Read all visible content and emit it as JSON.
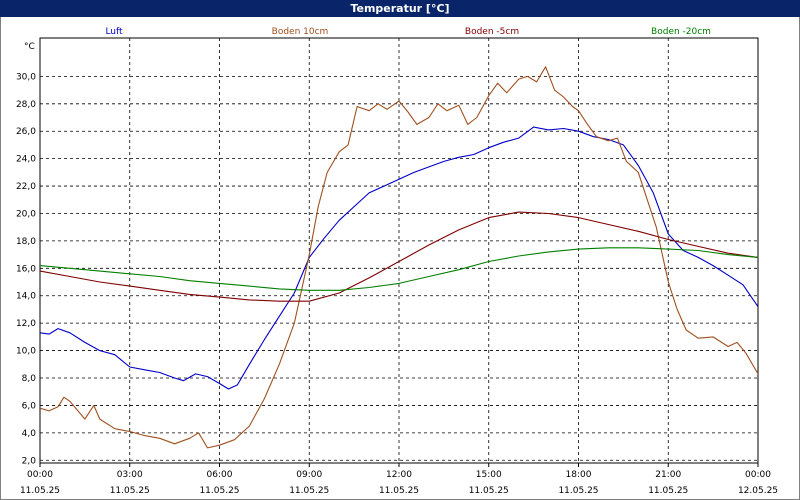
{
  "window": {
    "title": "Temperatur [°C]"
  },
  "chart_data": {
    "type": "line",
    "title": "Temperatur [°C]",
    "ylabel": "°C",
    "ylim": [
      1.8,
      32.8
    ],
    "xlim": [
      0,
      24
    ],
    "grid": true,
    "y_ticks": [
      "2,0",
      "4,0",
      "6,0",
      "8,0",
      "10,0",
      "12,0",
      "14,0",
      "16,0",
      "18,0",
      "20,0",
      "22,0",
      "24,0",
      "26,0",
      "28,0",
      "30,0"
    ],
    "x_ticks": [
      {
        "h": 0,
        "time": "00:00",
        "date": "11.05.25"
      },
      {
        "h": 3,
        "time": "03:00",
        "date": "11.05.25"
      },
      {
        "h": 6,
        "time": "06:00",
        "date": "11.05.25"
      },
      {
        "h": 9,
        "time": "09:00",
        "date": "11.05.25"
      },
      {
        "h": 12,
        "time": "12:00",
        "date": "11.05.25"
      },
      {
        "h": 15,
        "time": "15:00",
        "date": "11.05.25"
      },
      {
        "h": 18,
        "time": "18:00",
        "date": "11.05.25"
      },
      {
        "h": 21,
        "time": "21:00",
        "date": "11.05.25"
      },
      {
        "h": 24,
        "time": "00:00",
        "date": "12.05.25"
      }
    ],
    "series": [
      {
        "name": "Luft",
        "color": "#0000c8",
        "points": [
          [
            0,
            11.3
          ],
          [
            0.3,
            11.2
          ],
          [
            0.6,
            11.6
          ],
          [
            1.0,
            11.3
          ],
          [
            1.5,
            10.6
          ],
          [
            2.0,
            10.0
          ],
          [
            2.5,
            9.7
          ],
          [
            3.0,
            8.8
          ],
          [
            3.5,
            8.6
          ],
          [
            4.0,
            8.4
          ],
          [
            4.5,
            8.0
          ],
          [
            4.8,
            7.8
          ],
          [
            5.2,
            8.3
          ],
          [
            5.6,
            8.1
          ],
          [
            6.0,
            7.6
          ],
          [
            6.3,
            7.2
          ],
          [
            6.6,
            7.5
          ],
          [
            7.0,
            9.0
          ],
          [
            7.5,
            10.8
          ],
          [
            8.0,
            12.5
          ],
          [
            8.5,
            14.2
          ],
          [
            9.0,
            16.8
          ],
          [
            9.5,
            18.2
          ],
          [
            10.0,
            19.5
          ],
          [
            10.5,
            20.5
          ],
          [
            11.0,
            21.5
          ],
          [
            11.5,
            22.0
          ],
          [
            12.0,
            22.5
          ],
          [
            12.5,
            23.0
          ],
          [
            13.0,
            23.4
          ],
          [
            13.5,
            23.8
          ],
          [
            14.0,
            24.1
          ],
          [
            14.5,
            24.3
          ],
          [
            15.0,
            24.8
          ],
          [
            15.5,
            25.2
          ],
          [
            16.0,
            25.5
          ],
          [
            16.5,
            26.3
          ],
          [
            17.0,
            26.1
          ],
          [
            17.5,
            26.2
          ],
          [
            18.0,
            26.0
          ],
          [
            18.5,
            25.6
          ],
          [
            19.0,
            25.4
          ],
          [
            19.5,
            25.0
          ],
          [
            20.0,
            23.5
          ],
          [
            20.5,
            21.5
          ],
          [
            21.0,
            18.5
          ],
          [
            21.5,
            17.3
          ],
          [
            22.0,
            16.8
          ],
          [
            22.5,
            16.2
          ],
          [
            23.0,
            15.5
          ],
          [
            23.5,
            14.8
          ],
          [
            24.0,
            13.2
          ]
        ]
      },
      {
        "name": "Boden 10cm",
        "color": "#a0501e",
        "points": [
          [
            0,
            5.8
          ],
          [
            0.3,
            5.6
          ],
          [
            0.6,
            5.9
          ],
          [
            0.8,
            6.6
          ],
          [
            1.0,
            6.3
          ],
          [
            1.5,
            5.0
          ],
          [
            1.8,
            6.0
          ],
          [
            2.0,
            5.0
          ],
          [
            2.5,
            4.3
          ],
          [
            3.0,
            4.1
          ],
          [
            3.5,
            3.8
          ],
          [
            4.0,
            3.6
          ],
          [
            4.5,
            3.2
          ],
          [
            5.0,
            3.6
          ],
          [
            5.3,
            4.0
          ],
          [
            5.6,
            2.9
          ],
          [
            6.0,
            3.1
          ],
          [
            6.5,
            3.5
          ],
          [
            7.0,
            4.5
          ],
          [
            7.5,
            6.5
          ],
          [
            8.0,
            9.0
          ],
          [
            8.5,
            12.0
          ],
          [
            9.0,
            17.0
          ],
          [
            9.3,
            20.5
          ],
          [
            9.6,
            23.0
          ],
          [
            10.0,
            24.5
          ],
          [
            10.3,
            25.0
          ],
          [
            10.6,
            27.8
          ],
          [
            11.0,
            27.5
          ],
          [
            11.3,
            28.0
          ],
          [
            11.6,
            27.6
          ],
          [
            12.0,
            28.2
          ],
          [
            12.3,
            27.4
          ],
          [
            12.6,
            26.5
          ],
          [
            13.0,
            27.0
          ],
          [
            13.3,
            28.0
          ],
          [
            13.6,
            27.5
          ],
          [
            14.0,
            27.9
          ],
          [
            14.3,
            26.5
          ],
          [
            14.6,
            27.0
          ],
          [
            15.0,
            28.6
          ],
          [
            15.3,
            29.5
          ],
          [
            15.6,
            28.8
          ],
          [
            16.0,
            29.8
          ],
          [
            16.3,
            30.0
          ],
          [
            16.6,
            29.6
          ],
          [
            16.9,
            30.7
          ],
          [
            17.2,
            29.0
          ],
          [
            17.5,
            28.5
          ],
          [
            17.8,
            27.8
          ],
          [
            18.0,
            27.5
          ],
          [
            18.3,
            26.5
          ],
          [
            18.6,
            25.6
          ],
          [
            19.0,
            25.3
          ],
          [
            19.3,
            25.5
          ],
          [
            19.6,
            23.8
          ],
          [
            20.0,
            23.0
          ],
          [
            20.3,
            21.0
          ],
          [
            20.6,
            19.0
          ],
          [
            21.0,
            15.0
          ],
          [
            21.3,
            13.0
          ],
          [
            21.6,
            11.5
          ],
          [
            22.0,
            10.9
          ],
          [
            22.5,
            11.0
          ],
          [
            23.0,
            10.3
          ],
          [
            23.3,
            10.6
          ],
          [
            23.6,
            9.8
          ],
          [
            24.0,
            8.3
          ]
        ]
      },
      {
        "name": "Boden -5cm",
        "color": "#800000",
        "points": [
          [
            0,
            15.8
          ],
          [
            1.0,
            15.4
          ],
          [
            2.0,
            15.0
          ],
          [
            3.0,
            14.7
          ],
          [
            4.0,
            14.4
          ],
          [
            5.0,
            14.1
          ],
          [
            6.0,
            13.9
          ],
          [
            7.0,
            13.7
          ],
          [
            8.0,
            13.6
          ],
          [
            9.0,
            13.6
          ],
          [
            10.0,
            14.2
          ],
          [
            11.0,
            15.3
          ],
          [
            12.0,
            16.5
          ],
          [
            13.0,
            17.7
          ],
          [
            14.0,
            18.8
          ],
          [
            15.0,
            19.7
          ],
          [
            16.0,
            20.1
          ],
          [
            17.0,
            20.0
          ],
          [
            18.0,
            19.7
          ],
          [
            19.0,
            19.2
          ],
          [
            20.0,
            18.7
          ],
          [
            21.0,
            18.1
          ],
          [
            22.0,
            17.6
          ],
          [
            23.0,
            17.1
          ],
          [
            24.0,
            16.8
          ]
        ]
      },
      {
        "name": "Boden -20cm",
        "color": "#008000",
        "points": [
          [
            0,
            16.2
          ],
          [
            1.0,
            16.0
          ],
          [
            2.0,
            15.8
          ],
          [
            3.0,
            15.6
          ],
          [
            4.0,
            15.4
          ],
          [
            5.0,
            15.1
          ],
          [
            6.0,
            14.9
          ],
          [
            7.0,
            14.7
          ],
          [
            8.0,
            14.5
          ],
          [
            9.0,
            14.4
          ],
          [
            10.0,
            14.4
          ],
          [
            11.0,
            14.6
          ],
          [
            12.0,
            14.9
          ],
          [
            13.0,
            15.4
          ],
          [
            14.0,
            15.9
          ],
          [
            15.0,
            16.5
          ],
          [
            16.0,
            16.9
          ],
          [
            17.0,
            17.2
          ],
          [
            18.0,
            17.4
          ],
          [
            19.0,
            17.5
          ],
          [
            20.0,
            17.5
          ],
          [
            21.0,
            17.4
          ],
          [
            22.0,
            17.3
          ],
          [
            23.0,
            17.0
          ],
          [
            24.0,
            16.8
          ]
        ]
      }
    ]
  }
}
